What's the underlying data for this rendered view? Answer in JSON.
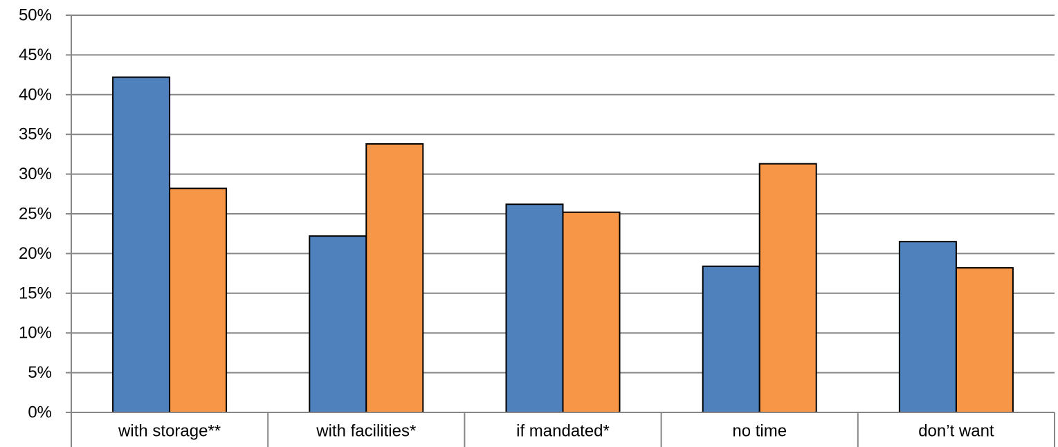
{
  "chart_data": {
    "type": "bar",
    "title": "",
    "xlabel": "",
    "ylabel": "",
    "categories": [
      "with storage**",
      "with facilities*",
      "if mandated*",
      "no time",
      "don’t want"
    ],
    "series": [
      {
        "values": [
          42.2,
          22.2,
          26.2,
          18.4,
          21.5
        ],
        "color": "#4F81BD"
      },
      {
        "values": [
          28.2,
          33.8,
          25.2,
          31.3,
          18.2
        ],
        "color": "#F79646"
      }
    ],
    "ylim": [
      0,
      50
    ],
    "ytick_step": 5,
    "ytick_labels": [
      "0%",
      "5%",
      "10%",
      "15%",
      "20%",
      "25%",
      "30%",
      "35%",
      "40%",
      "45%",
      "50%"
    ],
    "grid": true,
    "legend": "none"
  }
}
